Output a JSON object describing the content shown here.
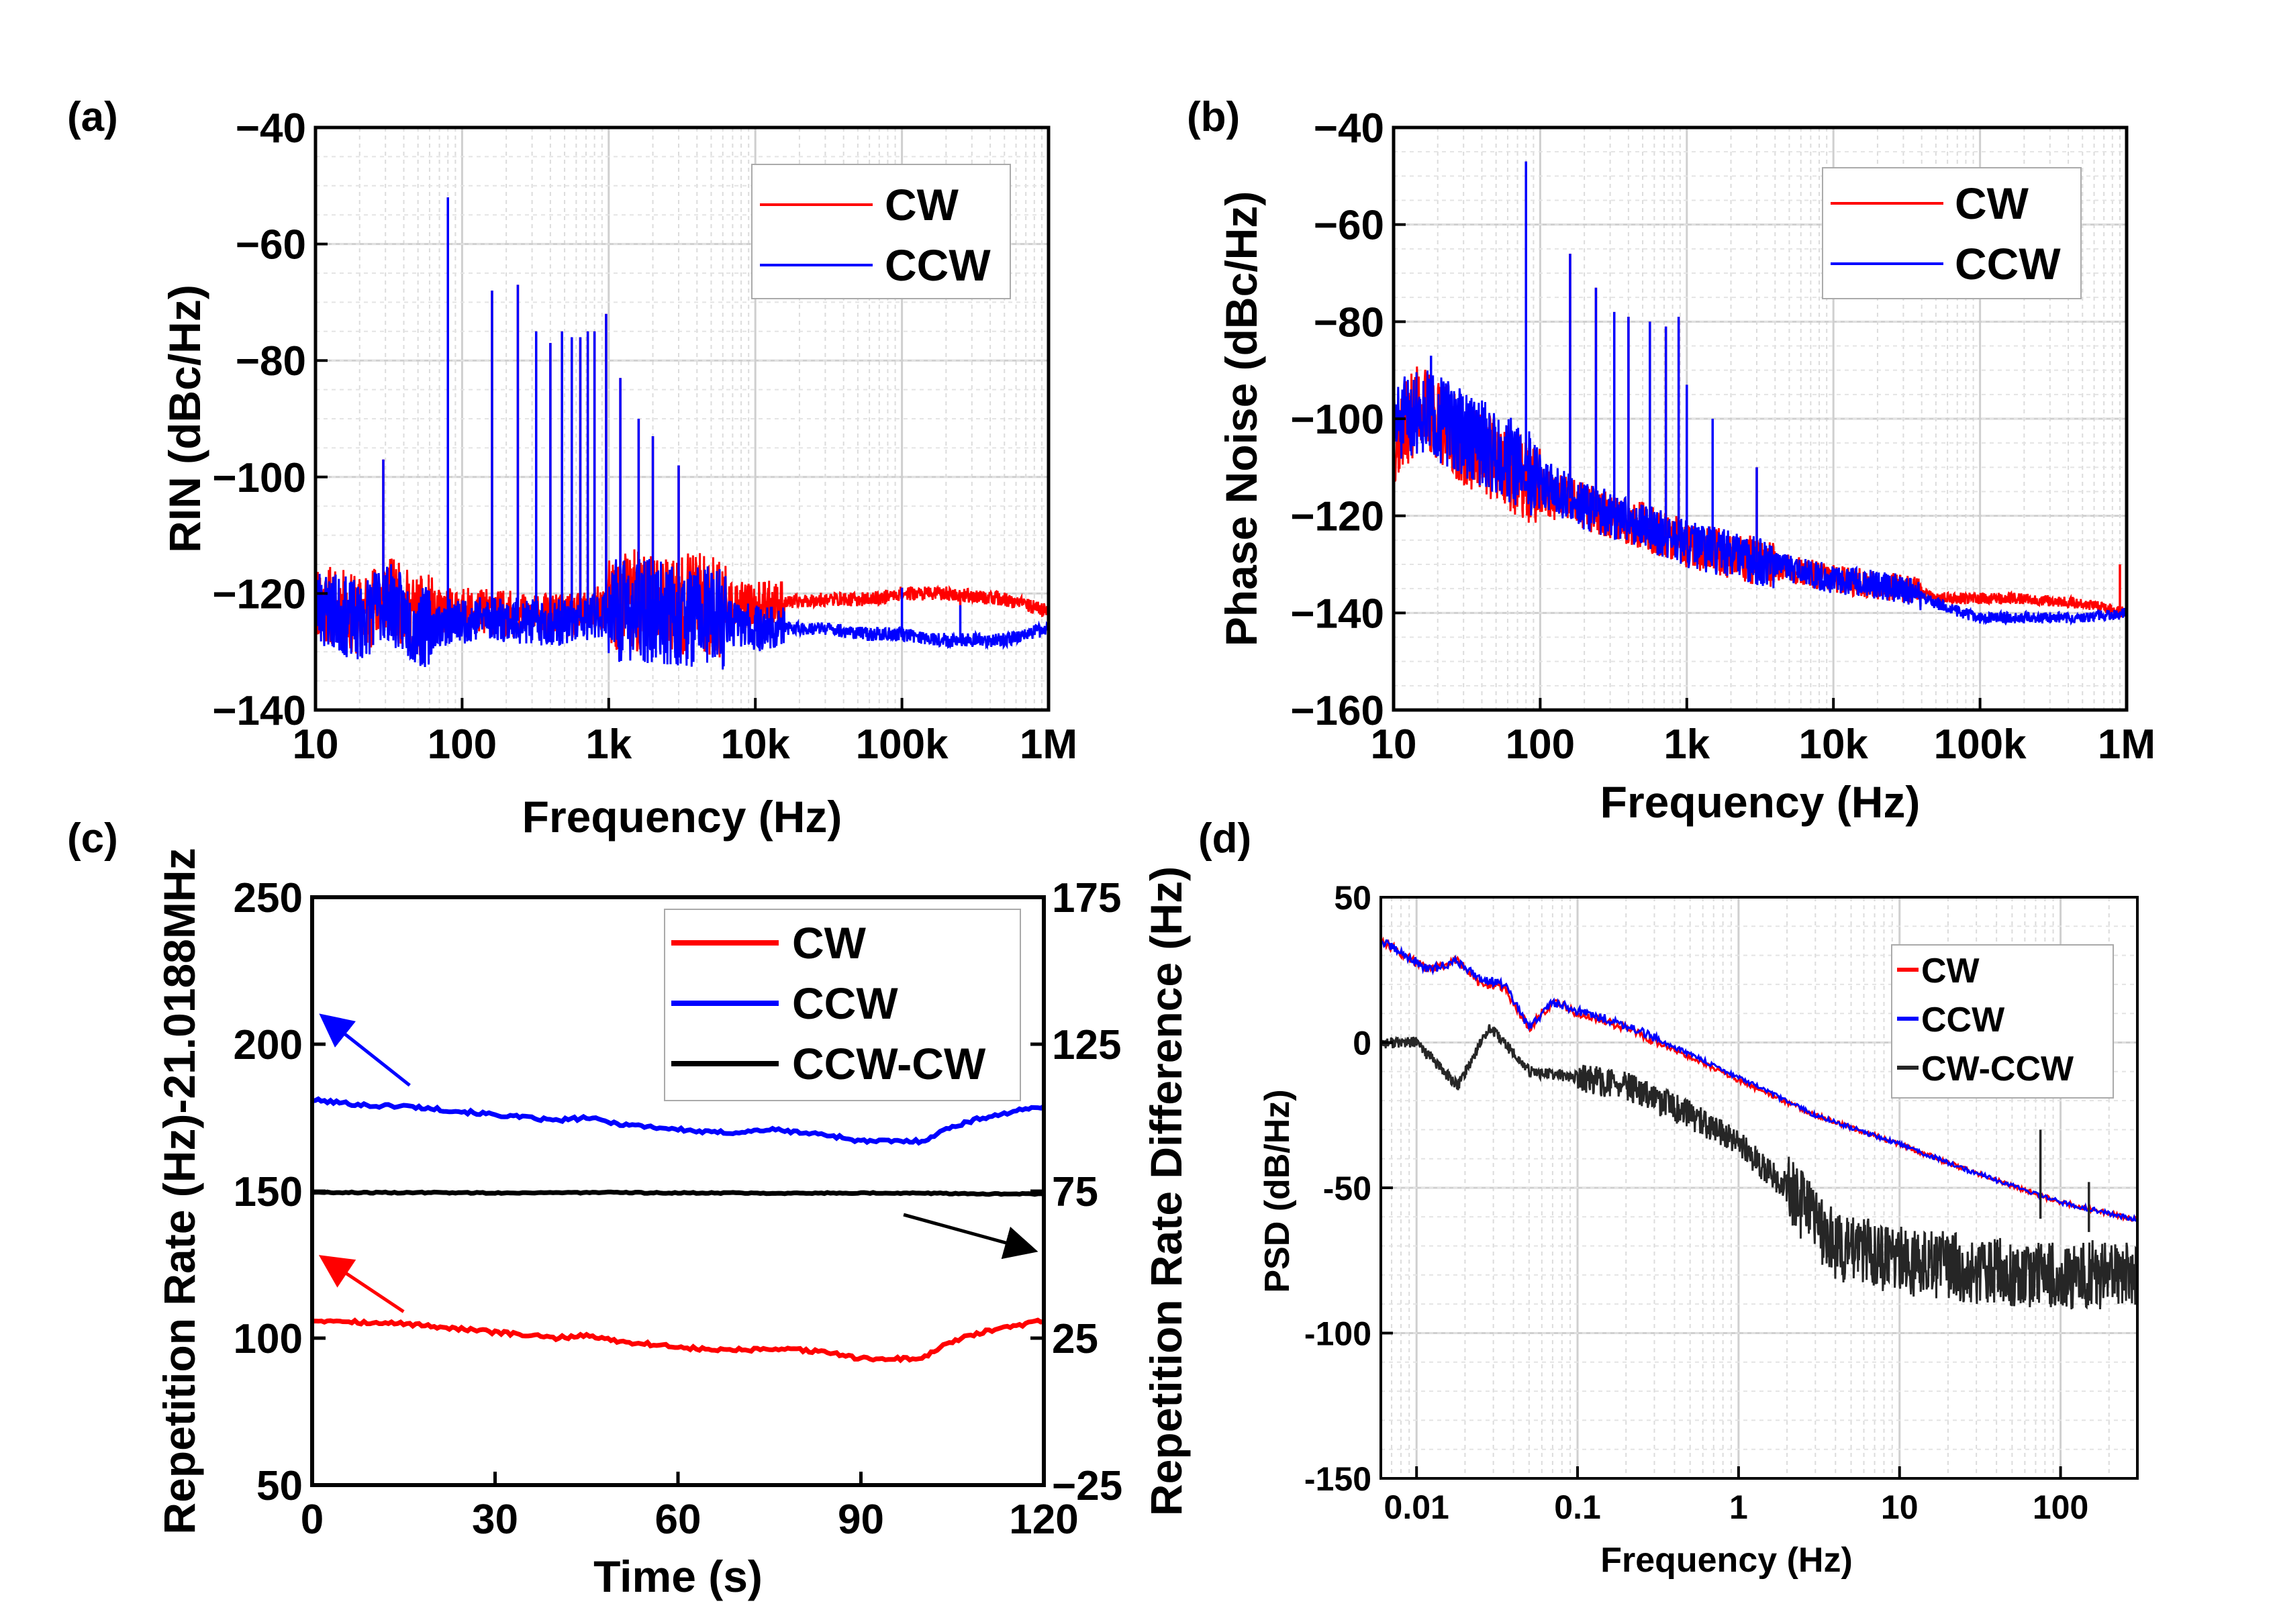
{
  "figure": {
    "panel_labels": [
      "(a)",
      "(b)",
      "(c)",
      "(d)"
    ]
  },
  "chart_data": [
    {
      "id": "a",
      "type": "line",
      "panel": "(a)",
      "xlabel": "Frequency (Hz)",
      "ylabel": "RIN (dBc/Hz)",
      "xscale": "log",
      "xlim": [
        10,
        1000000
      ],
      "ylim": [
        -140,
        -40
      ],
      "xticks": [
        10,
        100,
        1000,
        10000,
        100000,
        1000000
      ],
      "xtick_labels": [
        "10",
        "100",
        "1k",
        "10k",
        "100k",
        "1M"
      ],
      "yticks": [
        -140,
        -120,
        -100,
        -80,
        -60,
        -40
      ],
      "ytick_labels": [
        "−140",
        "−120",
        "−100",
        "−80",
        "−60",
        "−40"
      ],
      "grid": true,
      "legend_position": "top-right",
      "series": [
        {
          "name": "CW",
          "color": "#ff0000",
          "x": [
            10,
            20,
            30,
            50,
            80,
            150,
            300,
            600,
            1000,
            2000,
            5000,
            10000,
            30000,
            60000,
            100000,
            200000,
            500000,
            1000000
          ],
          "y": [
            -121,
            -124,
            -120,
            -124,
            -123,
            -123,
            -124,
            -124,
            -122,
            -121,
            -122,
            -122,
            -121,
            -121,
            -120,
            -120,
            -121,
            -123
          ]
        },
        {
          "name": "CCW",
          "color": "#0000ff",
          "x": [
            10,
            20,
            30,
            50,
            80,
            150,
            300,
            600,
            1000,
            2000,
            5000,
            10000,
            30000,
            60000,
            100000,
            200000,
            500000,
            1000000
          ],
          "y": [
            -122,
            -125,
            -121,
            -126,
            -125,
            -124,
            -125,
            -125,
            -123,
            -123,
            -124,
            -126,
            -126,
            -127,
            -127,
            -128,
            -128,
            -126
          ]
        }
      ],
      "spikes": [
        {
          "x": 29,
          "top": -97
        },
        {
          "x": 80,
          "top": -52
        },
        {
          "x": 160,
          "top": -68
        },
        {
          "x": 240,
          "top": -67
        },
        {
          "x": 320,
          "top": -75
        },
        {
          "x": 400,
          "top": -77
        },
        {
          "x": 480,
          "top": -75
        },
        {
          "x": 560,
          "top": -76
        },
        {
          "x": 640,
          "top": -76
        },
        {
          "x": 720,
          "top": -75
        },
        {
          "x": 800,
          "top": -75
        },
        {
          "x": 960,
          "top": -72
        },
        {
          "x": 1200,
          "top": -83
        },
        {
          "x": 1600,
          "top": -90
        },
        {
          "x": 2000,
          "top": -93
        },
        {
          "x": 3000,
          "top": -98
        },
        {
          "x": 100000,
          "top": -119
        },
        {
          "x": 250000,
          "top": -122
        }
      ]
    },
    {
      "id": "b",
      "type": "line",
      "panel": "(b)",
      "xlabel": "Frequency (Hz)",
      "ylabel": "Phase Noise (dBc/Hz)",
      "xscale": "log",
      "xlim": [
        10,
        1000000
      ],
      "ylim": [
        -160,
        -40
      ],
      "xticks": [
        10,
        100,
        1000,
        10000,
        100000,
        1000000
      ],
      "xtick_labels": [
        "10",
        "100",
        "1k",
        "10k",
        "100k",
        "1M"
      ],
      "yticks": [
        -160,
        -140,
        -120,
        -100,
        -80,
        -60,
        -40
      ],
      "ytick_labels": [
        "−160",
        "−140",
        "−120",
        "−100",
        "−80",
        "−60",
        "−40"
      ],
      "grid": true,
      "legend_position": "top-right",
      "series": [
        {
          "name": "CW",
          "color": "#ff0000",
          "x": [
            10,
            15,
            30,
            60,
            100,
            200,
            500,
            1000,
            2000,
            5000,
            10000,
            30000,
            60000,
            100000,
            200000,
            500000,
            1000000
          ],
          "y": [
            -105,
            -97,
            -105,
            -110,
            -115,
            -118,
            -122,
            -126,
            -128,
            -131,
            -133,
            -135,
            -137,
            -137,
            -137,
            -138,
            -140
          ]
        },
        {
          "name": "CCW",
          "color": "#0000ff",
          "x": [
            10,
            15,
            30,
            60,
            100,
            200,
            500,
            1000,
            2000,
            5000,
            10000,
            30000,
            60000,
            100000,
            200000,
            500000,
            1000000
          ],
          "y": [
            -102,
            -98,
            -103,
            -108,
            -113,
            -118,
            -122,
            -126,
            -128,
            -131,
            -133,
            -135,
            -139,
            -141,
            -141,
            -141,
            -140
          ]
        }
      ],
      "spikes": [
        {
          "x": 18,
          "top": -87
        },
        {
          "x": 80,
          "top": -47
        },
        {
          "x": 160,
          "top": -66
        },
        {
          "x": 240,
          "top": -73
        },
        {
          "x": 320,
          "top": -78
        },
        {
          "x": 400,
          "top": -79
        },
        {
          "x": 560,
          "top": -80
        },
        {
          "x": 720,
          "top": -81
        },
        {
          "x": 880,
          "top": -79
        },
        {
          "x": 1000,
          "top": -93
        },
        {
          "x": 1500,
          "top": -100
        },
        {
          "x": 3000,
          "top": -110
        },
        {
          "x": 900000,
          "top": -130
        }
      ]
    },
    {
      "id": "c",
      "type": "line",
      "panel": "(c)",
      "xlabel": "Time (s)",
      "ylabel": "Repetition Rate (Hz)-21.0188MHz",
      "y2label": "Repetition Rate Difference (Hz)",
      "xlim": [
        0,
        120
      ],
      "ylim": [
        50,
        250
      ],
      "y2lim": [
        -25,
        175
      ],
      "xticks": [
        0,
        30,
        60,
        90,
        120
      ],
      "yticks": [
        50,
        100,
        150,
        200,
        250
      ],
      "y2ticks": [
        -25,
        25,
        75,
        125,
        175
      ],
      "y2tick_labels": [
        "−25",
        "25",
        "75",
        "125",
        "175"
      ],
      "grid": false,
      "legend_position": "top-right",
      "series": [
        {
          "name": "CW",
          "color": "#ff0000",
          "axis": "left",
          "x": [
            0,
            5,
            10,
            15,
            20,
            25,
            30,
            35,
            40,
            45,
            50,
            55,
            60,
            65,
            70,
            75,
            80,
            85,
            90,
            95,
            100,
            105,
            110,
            115,
            120
          ],
          "y": [
            106,
            106,
            105,
            105,
            104,
            103,
            102,
            101,
            100,
            101,
            99,
            98,
            97,
            96,
            96,
            96,
            96,
            95,
            93,
            93,
            93,
            99,
            102,
            104,
            106
          ]
        },
        {
          "name": "CCW",
          "color": "#0000ff",
          "axis": "left",
          "x": [
            0,
            5,
            10,
            15,
            20,
            25,
            30,
            35,
            40,
            45,
            50,
            55,
            60,
            65,
            70,
            75,
            80,
            85,
            90,
            95,
            100,
            105,
            110,
            115,
            120
          ],
          "y": [
            181,
            180,
            179,
            179,
            178,
            177,
            176,
            175,
            174,
            175,
            173,
            172,
            171,
            170,
            170,
            171,
            170,
            169,
            167,
            167,
            167,
            172,
            175,
            177,
            179
          ]
        },
        {
          "name": "CCW-CW",
          "color": "#000000",
          "axis": "right",
          "x": [
            0,
            10,
            20,
            30,
            40,
            50,
            60,
            70,
            80,
            90,
            100,
            110,
            120
          ],
          "y": [
            74.6,
            74.5,
            74.5,
            74.4,
            74.5,
            74.5,
            74.4,
            74.4,
            74.3,
            74.4,
            74.3,
            74.1,
            74.0
          ]
        }
      ],
      "annotations": [
        {
          "type": "arrow",
          "color": "#0000ff",
          "from": [
            16,
            186
          ],
          "to": [
            2,
            209
          ]
        },
        {
          "type": "arrow",
          "color": "#ff0000",
          "from": [
            15,
            109
          ],
          "to": [
            2,
            127
          ]
        },
        {
          "type": "arrow",
          "color": "#000000",
          "from": [
            97,
            142
          ],
          "to": [
            118,
            130
          ]
        }
      ]
    },
    {
      "id": "d",
      "type": "line",
      "panel": "(d)",
      "xlabel": "Frequency (Hz)",
      "ylabel": "PSD (dB/Hz)",
      "xscale": "log",
      "xlim": [
        0.006,
        300
      ],
      "ylim": [
        -150,
        50
      ],
      "xticks": [
        0.01,
        0.1,
        1,
        10,
        100
      ],
      "xtick_labels": [
        "0.01",
        "0.1",
        "1",
        "10",
        "100"
      ],
      "yticks": [
        -150,
        -100,
        -50,
        0,
        50
      ],
      "ytick_labels": [
        "-150",
        "-100",
        "-50",
        "0",
        "50"
      ],
      "grid": true,
      "legend_position": "top-right",
      "series": [
        {
          "name": "CW",
          "color": "#ff0000",
          "x": [
            0.006,
            0.012,
            0.018,
            0.025,
            0.035,
            0.05,
            0.07,
            0.1,
            0.2,
            0.5,
            1,
            3,
            10,
            30,
            100,
            300
          ],
          "y": [
            35,
            25,
            28,
            20,
            19,
            5,
            14,
            10,
            5,
            -5,
            -13,
            -25,
            -35,
            -45,
            -55,
            -61
          ]
        },
        {
          "name": "CCW",
          "color": "#0000ff",
          "x": [
            0.006,
            0.012,
            0.018,
            0.025,
            0.035,
            0.05,
            0.07,
            0.1,
            0.2,
            0.5,
            1,
            3,
            10,
            30,
            100,
            300
          ],
          "y": [
            35,
            25,
            28,
            22,
            20,
            5,
            14,
            11,
            6,
            -4,
            -12,
            -25,
            -35,
            -45,
            -55,
            -61
          ]
        },
        {
          "name": "CW-CCW",
          "color": "#262626",
          "x": [
            0.006,
            0.01,
            0.018,
            0.028,
            0.035,
            0.05,
            0.1,
            0.2,
            0.5,
            1,
            2,
            4,
            10,
            30,
            100,
            300
          ],
          "y": [
            0,
            0,
            -15,
            5,
            0,
            -10,
            -12,
            -15,
            -25,
            -35,
            -50,
            -70,
            -75,
            -78,
            -80,
            -80
          ]
        }
      ],
      "spikes": [
        {
          "x": 75,
          "top": -30
        },
        {
          "x": 150,
          "top": -48
        }
      ]
    }
  ]
}
